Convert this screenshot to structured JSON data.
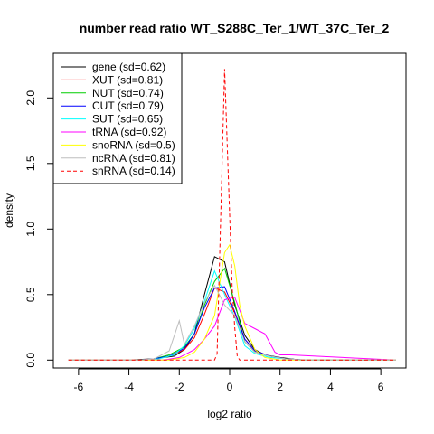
{
  "chart_data": {
    "type": "line",
    "title": "number read ratio WT_S288C_Ter_1/WT_37C_Ter_2",
    "xlabel": "log2 ratio",
    "ylabel": "density",
    "xlim": [
      -7.0,
      7.0
    ],
    "ylim": [
      -0.06,
      2.34
    ],
    "x_ticks": [
      -6,
      -4,
      -2,
      0,
      2,
      4,
      6
    ],
    "x_tick_labels": [
      "-6",
      "-4",
      "-2",
      "0",
      "2",
      "4",
      "6"
    ],
    "y_ticks": [
      0.0,
      0.5,
      1.0,
      1.5,
      2.0
    ],
    "y_tick_labels": [
      "0.0",
      "0.5",
      "1.0",
      "1.5",
      "2.0"
    ],
    "grid": false,
    "legend_position": "top-left",
    "series": [
      {
        "name": "gene (sd=0.62)",
        "color": "#000000",
        "dash": "solid",
        "x": [
          -6.4,
          -4.0,
          -3.0,
          -2.2,
          -1.8,
          -1.4,
          -1.0,
          -0.6,
          -0.2,
          0.2,
          0.6,
          1.0,
          1.4,
          2.0,
          2.8,
          6.6
        ],
        "y": [
          0,
          0,
          0.01,
          0.03,
          0.08,
          0.2,
          0.5,
          0.79,
          0.75,
          0.42,
          0.19,
          0.08,
          0.04,
          0.02,
          0,
          0
        ]
      },
      {
        "name": "XUT (sd=0.81)",
        "color": "#ff0000",
        "dash": "solid",
        "x": [
          -6.4,
          -3.6,
          -3.0,
          -2.4,
          -1.8,
          -1.4,
          -1.0,
          -0.6,
          -0.2,
          0.2,
          0.6,
          1.0,
          1.6,
          2.2,
          3.0,
          6.6
        ],
        "y": [
          0,
          0,
          0.01,
          0.03,
          0.08,
          0.17,
          0.35,
          0.55,
          0.52,
          0.36,
          0.16,
          0.07,
          0.03,
          0.01,
          0,
          0
        ]
      },
      {
        "name": "NUT (sd=0.74)",
        "color": "#00cd00",
        "dash": "solid",
        "x": [
          -6.4,
          -3.6,
          -3.0,
          -2.4,
          -1.8,
          -1.4,
          -1.0,
          -0.6,
          -0.2,
          0.2,
          0.6,
          1.0,
          1.6,
          2.2,
          3.0,
          6.6
        ],
        "y": [
          0,
          0,
          0.01,
          0.04,
          0.1,
          0.2,
          0.42,
          0.6,
          0.7,
          0.44,
          0.14,
          0.06,
          0.03,
          0.01,
          0,
          0
        ]
      },
      {
        "name": "CUT (sd=0.79)",
        "color": "#0000ff",
        "dash": "solid",
        "x": [
          -6.4,
          -3.6,
          -3.0,
          -2.4,
          -1.8,
          -1.4,
          -1.0,
          -0.6,
          -0.2,
          0.2,
          0.6,
          1.0,
          1.6,
          2.2,
          3.0,
          6.6
        ],
        "y": [
          0,
          0,
          0.01,
          0.03,
          0.09,
          0.2,
          0.4,
          0.55,
          0.56,
          0.37,
          0.16,
          0.07,
          0.03,
          0.01,
          0,
          0
        ]
      },
      {
        "name": "SUT (sd=0.65)",
        "color": "#00ffff",
        "dash": "solid",
        "x": [
          -6.4,
          -3.4,
          -2.8,
          -2.2,
          -1.8,
          -1.4,
          -1.0,
          -0.6,
          -0.2,
          0.2,
          0.6,
          1.0,
          1.6,
          2.2,
          2.8,
          6.6
        ],
        "y": [
          0,
          0,
          0.01,
          0.04,
          0.11,
          0.24,
          0.45,
          0.68,
          0.5,
          0.33,
          0.11,
          0.05,
          0.02,
          0.01,
          0,
          0
        ]
      },
      {
        "name": "tRNA (sd=0.92)",
        "color": "#ff00ff",
        "dash": "solid",
        "x": [
          -6.4,
          -2.6,
          -2.0,
          -1.4,
          -1.0,
          -0.6,
          -0.2,
          0.2,
          0.6,
          1.0,
          1.4,
          1.8,
          2.0,
          2.4,
          6.6
        ],
        "y": [
          0,
          0,
          0.02,
          0.08,
          0.16,
          0.26,
          0.46,
          0.48,
          0.28,
          0.24,
          0.2,
          0.06,
          0.04,
          0.04,
          0
        ]
      },
      {
        "name": "snoRNA (sd=0.5)",
        "color": "#ffff00",
        "dash": "solid",
        "x": [
          -6.4,
          -2.4,
          -1.8,
          -1.4,
          -1.0,
          -0.6,
          -0.2,
          0.0,
          0.2,
          0.4,
          0.6,
          1.0,
          1.4,
          2.0,
          6.6
        ],
        "y": [
          0,
          0,
          0.02,
          0.06,
          0.16,
          0.34,
          0.82,
          0.88,
          0.72,
          0.42,
          0.26,
          0.08,
          0.02,
          0,
          0
        ]
      },
      {
        "name": "ncRNA (sd=0.81)",
        "color": "#bebebe",
        "dash": "solid",
        "x": [
          -6.4,
          -3.6,
          -3.0,
          -2.4,
          -2.0,
          -1.8,
          -1.4,
          -1.0,
          -0.6,
          -0.2,
          0.2,
          0.6,
          1.0,
          1.6,
          2.2,
          3.0,
          6.6
        ],
        "y": [
          0,
          0,
          0.01,
          0.07,
          0.3,
          0.12,
          0.26,
          0.44,
          0.57,
          0.42,
          0.34,
          0.14,
          0.06,
          0.03,
          0.01,
          0,
          0
        ]
      },
      {
        "name": "snRNA (sd=0.14)",
        "color": "#ff0000",
        "dash": "dashed",
        "x": [
          -6.4,
          -0.6,
          -0.5,
          -0.2,
          0.1,
          0.2,
          0.3,
          0.4,
          6.6
        ],
        "y": [
          0,
          0,
          0.05,
          2.22,
          0.55,
          0.25,
          0.03,
          0,
          0
        ]
      }
    ]
  }
}
